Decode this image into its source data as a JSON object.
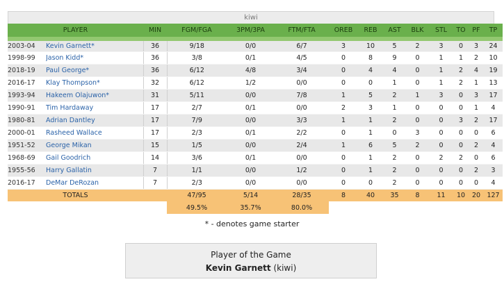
{
  "team_name": "kiwi",
  "columns": {
    "player": "PLAYER",
    "min": "MIN",
    "fg": "FGM/FGA",
    "tp3": "3PM/3PA",
    "ft": "FTM/FTA",
    "oreb": "OREB",
    "reb": "REB",
    "ast": "AST",
    "blk": "BLK",
    "stl": "STL",
    "to": "TO",
    "pf": "PF",
    "tp": "TP"
  },
  "rows": [
    {
      "year": "2003-04",
      "name": "Kevin Garnett*",
      "min": "36",
      "fg": "9/18",
      "tp3": "0/0",
      "ft": "6/7",
      "oreb": "3",
      "reb": "10",
      "ast": "5",
      "blk": "2",
      "stl": "3",
      "to": "0",
      "pf": "3",
      "tp": "24"
    },
    {
      "year": "1998-99",
      "name": "Jason Kidd*",
      "min": "36",
      "fg": "3/8",
      "tp3": "0/1",
      "ft": "4/5",
      "oreb": "0",
      "reb": "8",
      "ast": "9",
      "blk": "0",
      "stl": "1",
      "to": "1",
      "pf": "2",
      "tp": "10"
    },
    {
      "year": "2018-19",
      "name": "Paul George*",
      "min": "36",
      "fg": "6/12",
      "tp3": "4/8",
      "ft": "3/4",
      "oreb": "0",
      "reb": "4",
      "ast": "4",
      "blk": "0",
      "stl": "1",
      "to": "2",
      "pf": "4",
      "tp": "19"
    },
    {
      "year": "2016-17",
      "name": "Klay Thompson*",
      "min": "32",
      "fg": "6/12",
      "tp3": "1/2",
      "ft": "0/0",
      "oreb": "0",
      "reb": "0",
      "ast": "1",
      "blk": "0",
      "stl": "1",
      "to": "2",
      "pf": "1",
      "tp": "13"
    },
    {
      "year": "1993-94",
      "name": "Hakeem Olajuwon*",
      "min": "31",
      "fg": "5/11",
      "tp3": "0/0",
      "ft": "7/8",
      "oreb": "1",
      "reb": "5",
      "ast": "2",
      "blk": "1",
      "stl": "3",
      "to": "0",
      "pf": "3",
      "tp": "17"
    },
    {
      "year": "1990-91",
      "name": "Tim Hardaway",
      "min": "17",
      "fg": "2/7",
      "tp3": "0/1",
      "ft": "0/0",
      "oreb": "2",
      "reb": "3",
      "ast": "1",
      "blk": "0",
      "stl": "0",
      "to": "0",
      "pf": "1",
      "tp": "4"
    },
    {
      "year": "1980-81",
      "name": "Adrian Dantley",
      "min": "17",
      "fg": "7/9",
      "tp3": "0/0",
      "ft": "3/3",
      "oreb": "1",
      "reb": "1",
      "ast": "2",
      "blk": "0",
      "stl": "0",
      "to": "3",
      "pf": "2",
      "tp": "17"
    },
    {
      "year": "2000-01",
      "name": "Rasheed Wallace",
      "min": "17",
      "fg": "2/3",
      "tp3": "0/1",
      "ft": "2/2",
      "oreb": "0",
      "reb": "1",
      "ast": "0",
      "blk": "3",
      "stl": "0",
      "to": "0",
      "pf": "0",
      "tp": "6"
    },
    {
      "year": "1951-52",
      "name": "George Mikan",
      "min": "15",
      "fg": "1/5",
      "tp3": "0/0",
      "ft": "2/4",
      "oreb": "1",
      "reb": "6",
      "ast": "5",
      "blk": "2",
      "stl": "0",
      "to": "0",
      "pf": "2",
      "tp": "4"
    },
    {
      "year": "1968-69",
      "name": "Gail Goodrich",
      "min": "14",
      "fg": "3/6",
      "tp3": "0/1",
      "ft": "0/0",
      "oreb": "0",
      "reb": "1",
      "ast": "2",
      "blk": "0",
      "stl": "2",
      "to": "2",
      "pf": "0",
      "tp": "6"
    },
    {
      "year": "1955-56",
      "name": "Harry Gallatin",
      "min": "7",
      "fg": "1/1",
      "tp3": "0/0",
      "ft": "1/2",
      "oreb": "0",
      "reb": "1",
      "ast": "2",
      "blk": "0",
      "stl": "0",
      "to": "0",
      "pf": "2",
      "tp": "3"
    },
    {
      "year": "2016-17",
      "name": "DeMar DeRozan",
      "min": "7",
      "fg": "2/3",
      "tp3": "0/0",
      "ft": "0/0",
      "oreb": "0",
      "reb": "0",
      "ast": "2",
      "blk": "0",
      "stl": "0",
      "to": "0",
      "pf": "0",
      "tp": "4"
    }
  ],
  "totals": {
    "label": "TOTALS",
    "fg": "47/95",
    "tp3": "5/14",
    "ft": "28/35",
    "oreb": "8",
    "reb": "40",
    "ast": "35",
    "blk": "8",
    "stl": "11",
    "to": "10",
    "pf": "20",
    "tp": "127",
    "fg_pct": "49.5%",
    "tp3_pct": "35.7%",
    "ft_pct": "80.0%"
  },
  "starter_note": "* - denotes game starter",
  "potg": {
    "title": "Player of the Game",
    "player": "Kevin Garnett",
    "team": "(kiwi)"
  }
}
